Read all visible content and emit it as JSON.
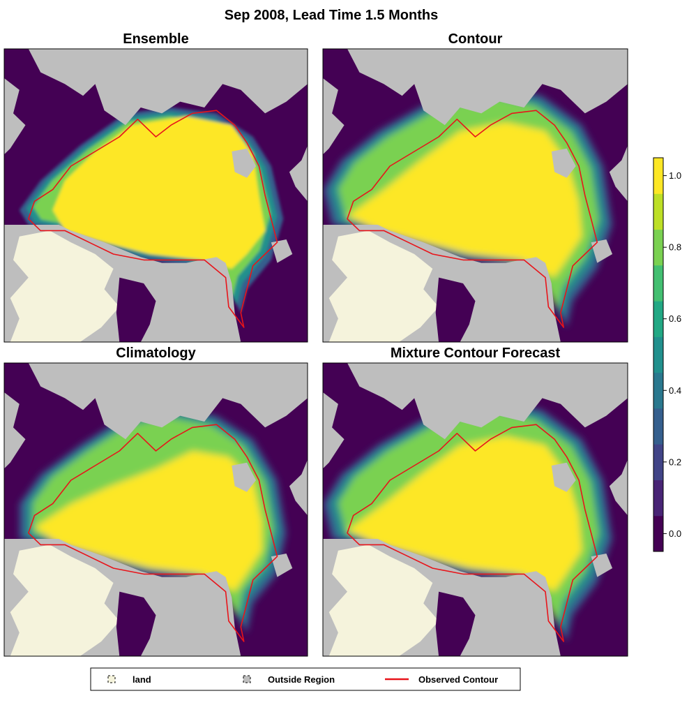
{
  "figure_title": "Sep 2008, Lead Time 1.5 Months",
  "chart_data": [
    {
      "type": "heatmap",
      "title": "Ensemble",
      "palette": "viridis",
      "spread": "sharp",
      "observed_contour": true
    },
    {
      "type": "heatmap",
      "title": "Contour",
      "palette": "viridis",
      "spread": "wide-west",
      "observed_contour": true
    },
    {
      "type": "heatmap",
      "title": "Climatology",
      "palette": "viridis",
      "spread": "wide-south",
      "observed_contour": true
    },
    {
      "type": "heatmap",
      "title": "Mixture Contour Forecast",
      "palette": "viridis",
      "spread": "wide-west",
      "observed_contour": true
    }
  ],
  "colorbar": {
    "ticks": [
      "1.0",
      "0.8",
      "0.6",
      "0.4",
      "0.2",
      "0.0"
    ],
    "tick_values": [
      1.0,
      0.8,
      0.6,
      0.4,
      0.2,
      0.0
    ],
    "range": [
      -0.05,
      1.05
    ],
    "colors": [
      "#440154",
      "#482475",
      "#414487",
      "#355f8d",
      "#2a788e",
      "#21908d",
      "#22a884",
      "#43bf71",
      "#7ad151",
      "#bddf26",
      "#fde725"
    ]
  },
  "legend": {
    "items": [
      {
        "label": "land",
        "kind": "swatch",
        "color": "#f5f3dc"
      },
      {
        "label": "Outside Region",
        "kind": "swatch",
        "color": "#bebebe"
      },
      {
        "label": "Observed Contour",
        "kind": "line",
        "color": "#e8141a"
      }
    ]
  },
  "colors": {
    "ocean": "#440154",
    "outside_region": "#bebebe",
    "land": "#f5f3dc",
    "ice_core": "#fde725",
    "contour": "#e8141a"
  }
}
